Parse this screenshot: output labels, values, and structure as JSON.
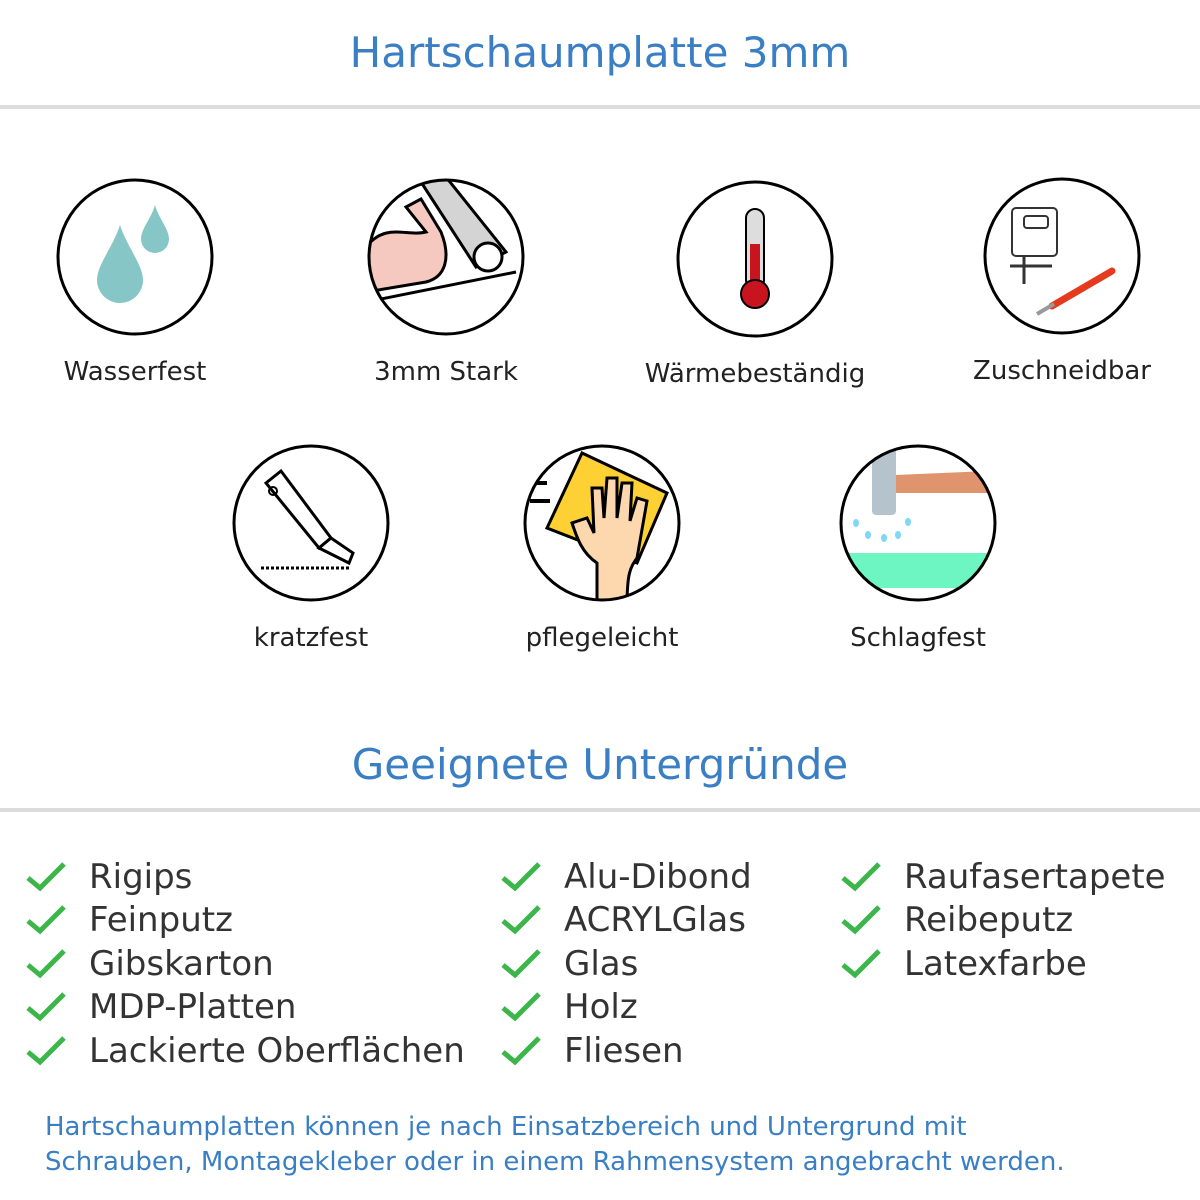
{
  "title": "Hartschaumplatte 3mm",
  "features": [
    {
      "label": "Wasserfest",
      "icon": "water-drops-icon"
    },
    {
      "label": "3mm Stark",
      "icon": "strong-arm-icon"
    },
    {
      "label": "Wärmebeständig",
      "icon": "thermometer-icon"
    },
    {
      "label": "Zuschneidbar",
      "icon": "jigsaw-knife-icon"
    },
    {
      "label": "kratzfest",
      "icon": "cutter-knife-icon"
    },
    {
      "label": "pflegeleicht",
      "icon": "hand-sponge-icon"
    },
    {
      "label": "Schlagfest",
      "icon": "hammer-icon"
    }
  ],
  "surfaces_title": "Geeignete Untergründe",
  "surfaces": {
    "col1": [
      "Rigips",
      "Feinputz",
      "Gibskarton",
      "MDP-Platten",
      "Lackierte Oberflächen"
    ],
    "col2": [
      "Alu-Dibond",
      "ACRYLGlas",
      "Glas",
      "Holz",
      "Fliesen"
    ],
    "col3": [
      "Raufasertapete",
      "Reibeputz",
      "Latexfarbe"
    ]
  },
  "check_color": "#3cb54a",
  "accent_color": "#3a7fc4",
  "footer": [
    "Hartschaumplatten können je nach Einsatzbereich und Untergrund mit",
    "Schrauben, Montagekleber oder in einem Rahmensystem angebracht werden."
  ]
}
